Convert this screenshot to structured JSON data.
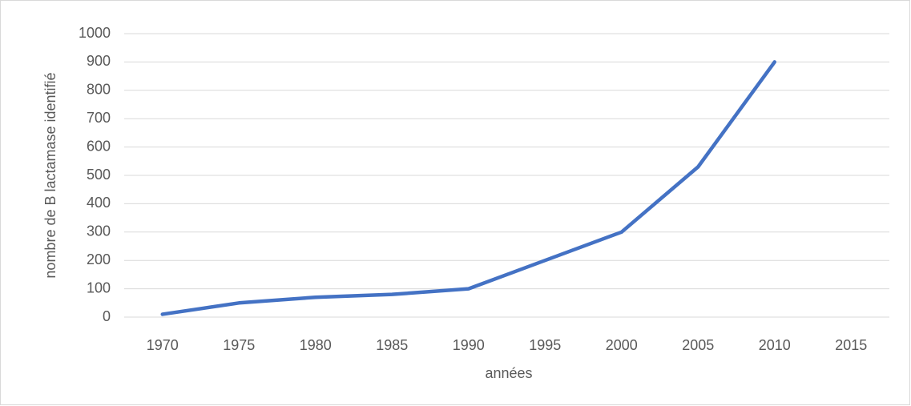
{
  "chart_data": {
    "type": "line",
    "categories": [
      "1970",
      "1975",
      "1980",
      "1985",
      "1990",
      "1995",
      "2000",
      "2005",
      "2010",
      "2015"
    ],
    "series": [
      {
        "name": "nombre de B lactamase identifié",
        "color": "#4472c4",
        "values": [
          10,
          50,
          70,
          80,
          100,
          200,
          300,
          530,
          900,
          null
        ]
      }
    ],
    "ylim": [
      0,
      1000
    ],
    "yticks": [
      0,
      100,
      200,
      300,
      400,
      500,
      600,
      700,
      800,
      900,
      1000
    ],
    "ylabel": "nombre de B lactamase identifié",
    "xlabel": "années",
    "grid": true
  }
}
